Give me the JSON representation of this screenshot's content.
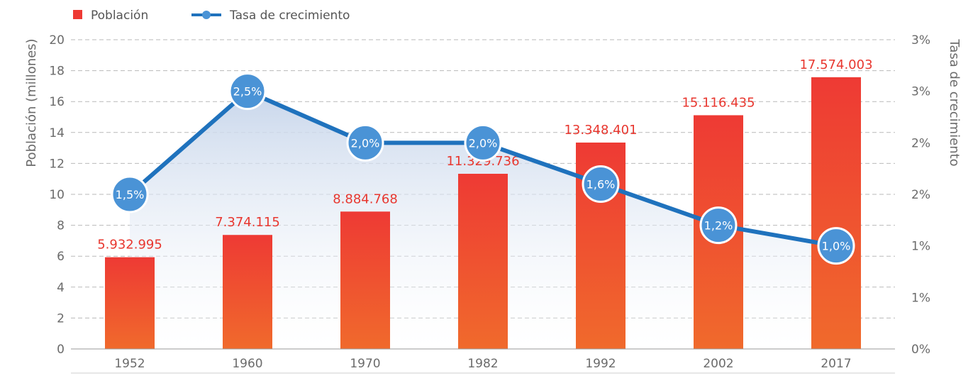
{
  "chart_data": {
    "type": "bar",
    "categories": [
      "1952",
      "1960",
      "1970",
      "1982",
      "1992",
      "2002",
      "2017"
    ],
    "series": [
      {
        "name": "Población",
        "type": "bar",
        "axis": "left",
        "values": [
          5.932995,
          7.374115,
          8.884768,
          11.329736,
          13.348401,
          15.116435,
          17.574003
        ],
        "labels": [
          "5.932.995",
          "7.374.115",
          "8.884.768",
          "11.329.736",
          "13.348.401",
          "15.116.435",
          "17.574.003"
        ]
      },
      {
        "name": "Tasa de crecimiento",
        "type": "line",
        "axis": "right",
        "values": [
          1.5,
          2.5,
          2.0,
          2.0,
          1.6,
          1.2,
          1.0
        ],
        "labels": [
          "1,5%",
          "2,5%",
          "2,0%",
          "2,0%",
          "1,6%",
          "1,2%",
          "1,0%"
        ]
      }
    ],
    "ylabel": "Población (millones)",
    "y2label": "Tasa de crecimiento",
    "ylim": [
      0,
      20
    ],
    "yticks": [
      "0",
      "2",
      "4",
      "6",
      "8",
      "10",
      "12",
      "14",
      "16",
      "18",
      "20"
    ],
    "y2lim": [
      0,
      3
    ],
    "y2ticks": [
      "0%",
      "1%",
      "1%",
      "2%",
      "2%",
      "3%",
      "3%"
    ],
    "grid": true,
    "legend": "top-left",
    "colors": {
      "bar_top": "#ee3a34",
      "bar_bottom": "#f06a2c",
      "bar_label": "#e8372f",
      "line": "#1f72bd",
      "dot": "#4a93d6",
      "area": "#c5d4ea"
    }
  }
}
